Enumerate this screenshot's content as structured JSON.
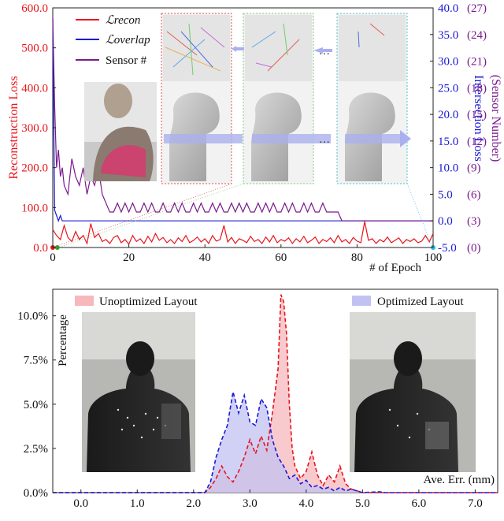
{
  "chart_data": [
    {
      "type": "line",
      "xlabel": "# of Epoch",
      "ylabel_left": "Reconstruction Loss",
      "ylabel_right": "Intersection Loss",
      "ylabel_right2": "(Sensor Number)",
      "x_ticks": [
        "0",
        "20",
        "40",
        "60",
        "80",
        "100"
      ],
      "y_left_ticks": [
        "0.0",
        "100.0",
        "200.0",
        "300.0",
        "400.0",
        "500.0",
        "600.0"
      ],
      "y_right_ticks": [
        "-5.0",
        "0.0",
        "5.0",
        "10.0",
        "15.0",
        "20.0",
        "25.0",
        "30.0",
        "35.0",
        "40.0"
      ],
      "y_right2_ticks": [
        "(0)",
        "(3)",
        "(6)",
        "(9)",
        "(12)",
        "(15)",
        "(18)",
        "(21)",
        "(24)",
        "(27)"
      ],
      "xlim": [
        0,
        100
      ],
      "ylim_left": [
        0,
        600
      ],
      "ylim_right": [
        -5,
        40
      ],
      "legend": [
        "ℒrecon",
        "ℒoverlap",
        "Sensor #"
      ],
      "colors": {
        "recon": "#e8141c",
        "overlap": "#1a1ad6",
        "sensor": "#7a1a8c"
      },
      "series": [
        {
          "name": "ℒrecon",
          "axis": "left",
          "x": [
            0,
            1,
            2,
            3,
            4,
            5,
            6,
            7,
            8,
            9,
            10,
            11,
            12,
            13,
            14,
            15,
            16,
            17,
            18,
            19,
            20,
            21,
            22,
            23,
            24,
            25,
            26,
            27,
            28,
            29,
            30,
            31,
            32,
            33,
            34,
            35,
            36,
            37,
            38,
            39,
            40,
            41,
            42,
            43,
            44,
            45,
            46,
            47,
            48,
            49,
            50,
            51,
            52,
            53,
            54,
            55,
            56,
            57,
            58,
            59,
            60,
            61,
            62,
            63,
            64,
            65,
            66,
            67,
            68,
            69,
            70,
            71,
            72,
            73,
            74,
            75,
            76,
            77,
            78,
            79,
            80,
            81,
            82,
            83,
            84,
            85,
            86,
            87,
            88,
            89,
            90,
            91,
            92,
            93,
            94,
            95,
            96,
            97,
            98,
            99,
            100
          ],
          "values": [
            45,
            30,
            20,
            55,
            25,
            15,
            40,
            20,
            30,
            10,
            60,
            25,
            35,
            15,
            20,
            10,
            25,
            30,
            12,
            20,
            8,
            30,
            15,
            22,
            10,
            28,
            14,
            35,
            18,
            25,
            12,
            20,
            10,
            24,
            15,
            30,
            12,
            18,
            26,
            14,
            22,
            10,
            30,
            16,
            20,
            55,
            14,
            25,
            10,
            22,
            18,
            12,
            28,
            15,
            20,
            10,
            26,
            14,
            30,
            12,
            20,
            16,
            24,
            10,
            22,
            14,
            28,
            12,
            18,
            26,
            10,
            20,
            15,
            24,
            12,
            30,
            14,
            20,
            10,
            25,
            16,
            12,
            65,
            18,
            22,
            10,
            20,
            14,
            26,
            12,
            18,
            24,
            10,
            20,
            15,
            22,
            12,
            16,
            30,
            14,
            35
          ]
        },
        {
          "name": "ℒoverlap",
          "axis": "right",
          "x": [
            0,
            0.5,
            1,
            1.5,
            2,
            2.5,
            3,
            4,
            5,
            100
          ],
          "values": [
            38,
            2,
            1,
            0,
            1,
            0,
            0,
            0,
            0,
            0
          ]
        },
        {
          "name": "Sensor #",
          "axis": "right2",
          "x": [
            0,
            0.5,
            1,
            1.5,
            2,
            2.5,
            3,
            4,
            5,
            6,
            7,
            8,
            9,
            10,
            11,
            12,
            13,
            14,
            15,
            16,
            17,
            18,
            19,
            20,
            21,
            22,
            23,
            24,
            25,
            26,
            27,
            28,
            29,
            30,
            31,
            32,
            33,
            34,
            35,
            36,
            37,
            38,
            39,
            40,
            41,
            42,
            43,
            44,
            45,
            46,
            47,
            48,
            49,
            50,
            51,
            52,
            53,
            54,
            55,
            56,
            57,
            58,
            59,
            60,
            61,
            62,
            63,
            64,
            65,
            66,
            67,
            68,
            69,
            70,
            71,
            72,
            73,
            74,
            75,
            76,
            77,
            78,
            79,
            80,
            81,
            82,
            83,
            84,
            85,
            86,
            87,
            88,
            89,
            90,
            91,
            92,
            93,
            94,
            95,
            96,
            97,
            98,
            99,
            100
          ],
          "values": [
            26,
            16,
            9,
            11,
            8,
            9,
            7,
            6,
            10,
            8,
            7,
            9,
            6,
            8,
            7,
            9,
            6,
            5,
            4,
            4,
            5,
            4,
            5,
            4,
            5,
            4,
            4,
            5,
            4,
            5,
            4,
            4,
            5,
            4,
            4,
            5,
            4,
            5,
            4,
            4,
            5,
            4,
            5,
            4,
            4,
            5,
            4,
            5,
            4,
            4,
            5,
            4,
            5,
            4,
            5,
            4,
            4,
            5,
            4,
            5,
            4,
            5,
            4,
            4,
            5,
            4,
            5,
            4,
            4,
            5,
            4,
            5,
            4,
            4,
            5,
            4,
            4,
            4,
            4,
            3,
            3,
            3,
            3,
            3,
            3,
            3,
            3,
            3,
            3,
            3,
            3,
            3,
            3,
            3,
            3,
            3,
            3,
            3,
            3,
            3,
            3,
            3,
            3,
            3
          ]
        }
      ],
      "annotations": [
        "…",
        "…"
      ]
    },
    {
      "type": "area",
      "xlabel": "Ave. Err. (mm)",
      "ylabel": "Percentage",
      "x_ticks": [
        "0.0",
        "1.0",
        "2.0",
        "3.0",
        "4.0",
        "5.0",
        "6.0",
        "7.0"
      ],
      "y_ticks": [
        "0.0%",
        "2.5%",
        "5.0%",
        "7.5%",
        "10.0%"
      ],
      "xlim": [
        -0.5,
        7.4
      ],
      "ylim": [
        0,
        11.5
      ],
      "legend": [
        "Unoptimized Layout",
        "Optimized Layout"
      ],
      "colors": {
        "unoptimized": "#e8141c",
        "unoptimized_fill": "#f7b8bc",
        "optimized": "#1a1ad6",
        "optimized_fill": "#c2c2f2"
      },
      "series": [
        {
          "name": "Unoptimized Layout",
          "x": [
            -0.5,
            2.0,
            2.2,
            2.3,
            2.4,
            2.5,
            2.6,
            2.7,
            2.8,
            2.9,
            3.0,
            3.1,
            3.2,
            3.3,
            3.4,
            3.5,
            3.55,
            3.6,
            3.65,
            3.7,
            3.75,
            3.8,
            3.9,
            4.0,
            4.1,
            4.2,
            4.3,
            4.4,
            4.5,
            4.6,
            4.7,
            4.8,
            5.0,
            7.4
          ],
          "values": [
            0,
            0,
            0,
            0.3,
            0.8,
            1.5,
            0.9,
            0.6,
            1.2,
            2.0,
            3.0,
            2.2,
            3.2,
            2.4,
            4.5,
            7.0,
            11.2,
            10.8,
            9.0,
            5.0,
            2.5,
            1.5,
            0.8,
            1.2,
            2.3,
            1.0,
            0.4,
            1.0,
            0.6,
            1.5,
            0.5,
            0.2,
            0,
            0
          ]
        },
        {
          "name": "Optimized Layout",
          "x": [
            -0.5,
            2.0,
            2.2,
            2.3,
            2.4,
            2.5,
            2.6,
            2.7,
            2.8,
            2.9,
            3.0,
            3.1,
            3.2,
            3.3,
            3.4,
            3.5,
            3.6,
            3.7,
            3.8,
            3.9,
            4.0,
            4.1,
            4.2,
            4.3,
            4.4,
            4.5,
            4.6,
            4.7,
            4.8,
            4.9,
            5.0,
            5.3,
            5.4,
            7.4
          ],
          "values": [
            0,
            0,
            0,
            0.6,
            2.0,
            3.0,
            3.8,
            5.7,
            4.5,
            5.5,
            4.0,
            3.8,
            5.3,
            4.8,
            3.0,
            2.0,
            1.5,
            0.8,
            1.0,
            0.5,
            0.7,
            0.3,
            0.4,
            0.2,
            0.3,
            0.1,
            0.3,
            0.1,
            0.2,
            0.1,
            0,
            0.05,
            0,
            0
          ]
        }
      ]
    }
  ]
}
